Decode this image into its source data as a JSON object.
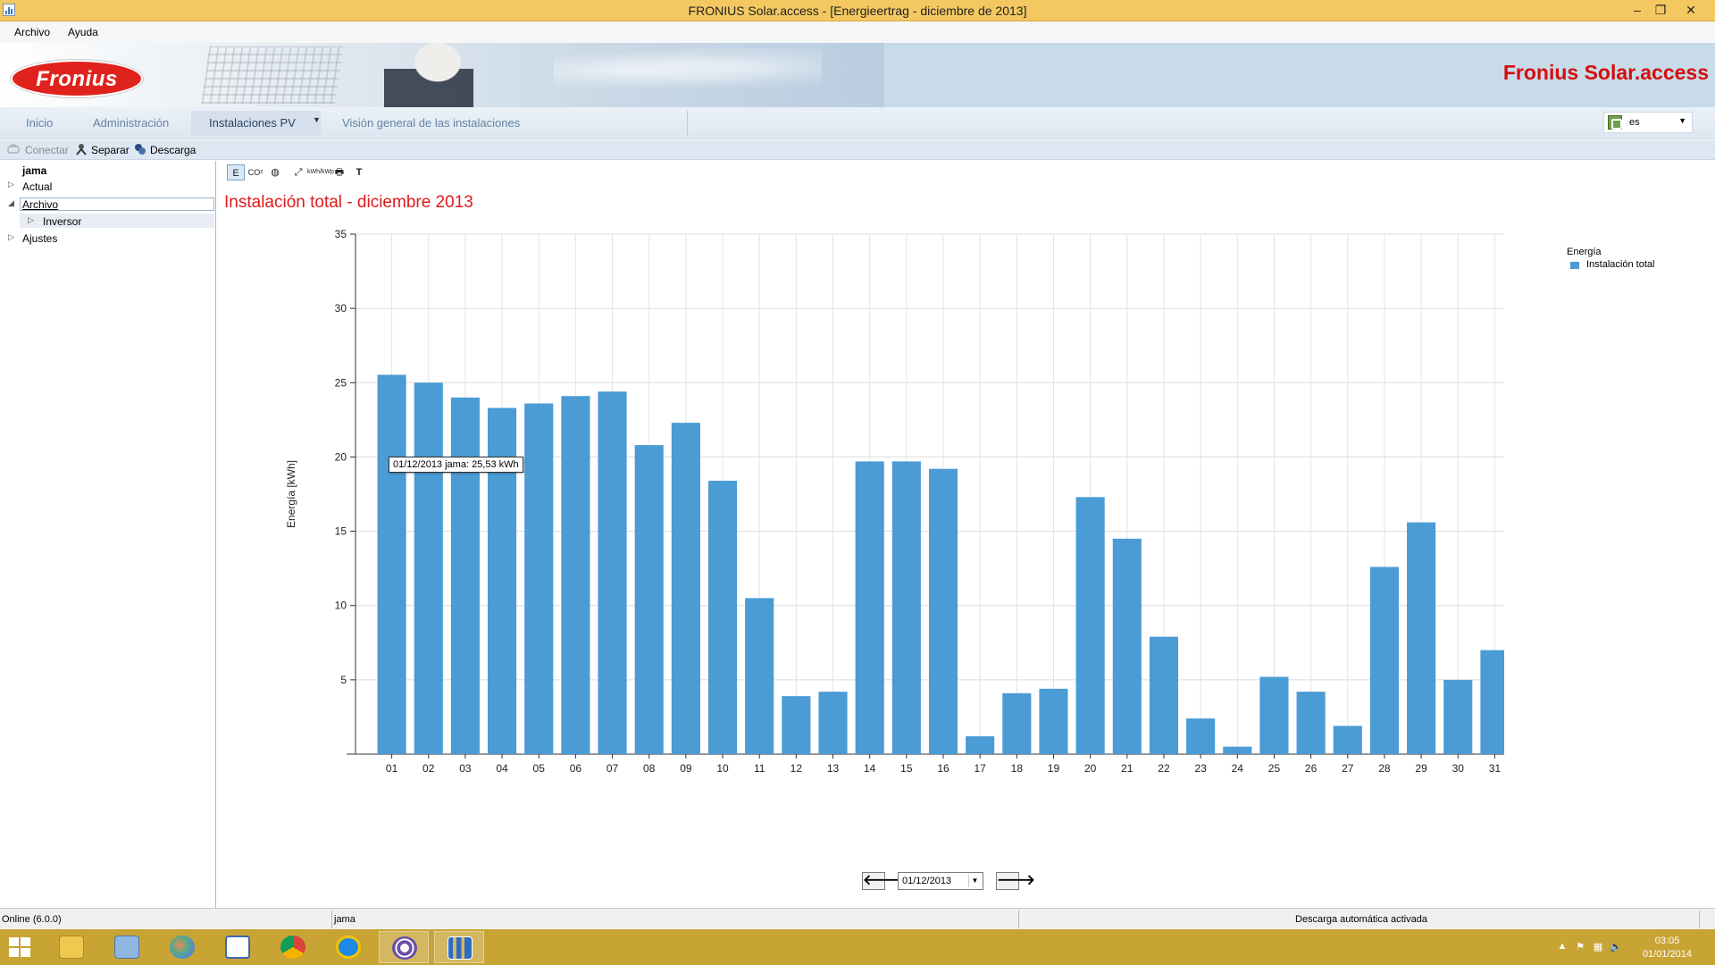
{
  "window": {
    "title": "FRONIUS Solar.access - [Energieertrag - diciembre de 2013]",
    "controls": {
      "minimize": "–",
      "restore": "❐",
      "close": "✕"
    }
  },
  "menu": {
    "items": [
      "Archivo",
      "Ayuda"
    ]
  },
  "banner": {
    "logo_text": "Fronius",
    "brand": "Fronius Solar.access"
  },
  "nav": {
    "tabs": [
      "Inicio",
      "Administración",
      "Instalaciones PV",
      "Visión general de las instalaciones"
    ],
    "active_tab": "Instalaciones PV",
    "language": "es"
  },
  "toolbar": {
    "connect": "Conectar",
    "disconnect": "Separar",
    "download": "Descarga"
  },
  "tree": {
    "root": "jama",
    "items": [
      "Actual",
      "Archivo",
      "Inversor",
      "Ajustes"
    ]
  },
  "content": {
    "tool_icons": [
      "E",
      "CO²",
      "◍",
      "⤢",
      "kWh/kWp",
      "🖶",
      "T"
    ],
    "title": "Instalación total - diciembre 2013",
    "tooltip": "01/12/2013 jama: 25,53 kWh",
    "date_value": "01/12/2013",
    "prev_arrow": "🡐",
    "next_arrow": "🡒"
  },
  "chart_data": {
    "type": "bar",
    "title": "Instalación total - diciembre 2013",
    "xlabel": "",
    "ylabel": "Energía [kWh]",
    "ylim": [
      0,
      35
    ],
    "yticks": [
      5,
      10,
      15,
      20,
      25,
      30,
      35
    ],
    "grid": true,
    "legend_title": "Energía",
    "legend_position": "top-right",
    "bar_color": "#4b9bd4",
    "categories": [
      "01",
      "02",
      "03",
      "04",
      "05",
      "06",
      "07",
      "08",
      "09",
      "10",
      "11",
      "12",
      "13",
      "14",
      "15",
      "16",
      "17",
      "18",
      "19",
      "20",
      "21",
      "22",
      "23",
      "24",
      "25",
      "26",
      "27",
      "28",
      "29",
      "30",
      "31"
    ],
    "series": [
      {
        "name": "Instalación total",
        "values": [
          25.53,
          25.0,
          24.0,
          23.3,
          23.6,
          24.1,
          24.4,
          20.8,
          22.3,
          18.4,
          10.5,
          3.9,
          4.2,
          19.7,
          19.7,
          19.2,
          1.2,
          4.1,
          4.4,
          17.3,
          14.5,
          7.9,
          2.4,
          0.5,
          5.2,
          4.2,
          1.9,
          12.6,
          15.6,
          5.0,
          7.0
        ]
      }
    ]
  },
  "status": {
    "left": "Online (6.0.0)",
    "middle": "jama",
    "right": "Descarga automática activada"
  },
  "taskbar": {
    "clock_time": "03:05",
    "clock_date": "01/01/2014"
  }
}
